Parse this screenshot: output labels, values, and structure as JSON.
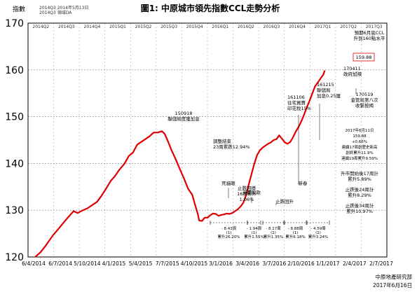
{
  "chart_data": {
    "type": "line",
    "title": "圖1: 中原城市領先指數CCL走勢分析",
    "ylabel": "指數",
    "ylim": [
      120,
      170
    ],
    "yticks": [
      120,
      130,
      140,
      150,
      160,
      170
    ],
    "grid": true,
    "corner_labels": [
      "2014Q3 2014年5月13日",
      "2014Q3 領域DA"
    ],
    "x_tick_labels": [
      "6/4/2014",
      "6/7/2014",
      "5/10/2014",
      "4/1/2015",
      "5/4/2015",
      "7/7/2015",
      "4/10/2015",
      "3/1/2016",
      "3/4/2016",
      "3/7/2016",
      "2/10/2016",
      "1/1/2017",
      "2/4/2017",
      "2/7/2017"
    ],
    "quarter_labels": [
      "2014Q2",
      "2014Q3",
      "2014Q4",
      "2015Q1",
      "2015Q2",
      "2015Q3",
      "2015Q4",
      "2016Q1",
      "2016Q2",
      "2016Q3",
      "2016Q4",
      "2017Q1",
      "2017Q2",
      "2017Q3"
    ],
    "series": [
      {
        "color": "#e00000",
        "points": [
          [
            0.0,
            117
          ],
          [
            0.4,
            118.5
          ],
          [
            0.9,
            121
          ],
          [
            1.3,
            122.5
          ],
          [
            1.8,
            124.6
          ],
          [
            2.2,
            126
          ],
          [
            2.7,
            127.8
          ],
          [
            3.0,
            128.8
          ],
          [
            3.3,
            129.8
          ],
          [
            3.6,
            129.4
          ],
          [
            3.9,
            129.9
          ],
          [
            4.3,
            130.4
          ],
          [
            4.7,
            131.2
          ],
          [
            5.0,
            131.8
          ],
          [
            5.3,
            133
          ],
          [
            5.7,
            134.8
          ],
          [
            6.0,
            136.3
          ],
          [
            6.3,
            137.3
          ],
          [
            6.6,
            138.6
          ],
          [
            7.0,
            140
          ],
          [
            7.3,
            141.6
          ],
          [
            7.6,
            142.3
          ],
          [
            7.9,
            144
          ],
          [
            8.2,
            144.6
          ],
          [
            8.5,
            145.2
          ],
          [
            8.8,
            145.8
          ],
          [
            9.1,
            146.6
          ],
          [
            9.4,
            146.6
          ],
          [
            9.7,
            146.9
          ],
          [
            9.9,
            146.3
          ],
          [
            10.1,
            145
          ],
          [
            10.4,
            142.8
          ],
          [
            10.7,
            140.9
          ],
          [
            11.0,
            138.8
          ],
          [
            11.3,
            136.8
          ],
          [
            11.6,
            134.6
          ],
          [
            11.9,
            133.3
          ],
          [
            12.1,
            131.2
          ],
          [
            12.3,
            129.2
          ],
          [
            12.4,
            127.8
          ],
          [
            12.6,
            127.7
          ],
          [
            12.8,
            128.4
          ],
          [
            13.0,
            128.4
          ],
          [
            13.2,
            128.9
          ],
          [
            13.4,
            129.3
          ],
          [
            13.6,
            129.2
          ],
          [
            13.8,
            128.8
          ],
          [
            14.0,
            129
          ],
          [
            14.2,
            129.1
          ],
          [
            14.4,
            129.3
          ],
          [
            14.6,
            129.2
          ],
          [
            14.8,
            129.4
          ],
          [
            15.0,
            129.8
          ],
          [
            15.2,
            130.2
          ],
          [
            15.4,
            130.8
          ],
          [
            15.6,
            131.6
          ],
          [
            15.8,
            133.2
          ],
          [
            16.0,
            135.6
          ],
          [
            16.2,
            137.8
          ],
          [
            16.4,
            140
          ],
          [
            16.6,
            141.8
          ],
          [
            16.8,
            142.8
          ],
          [
            17.0,
            143.4
          ],
          [
            17.2,
            143.8
          ],
          [
            17.4,
            144.2
          ],
          [
            17.6,
            144.5
          ],
          [
            17.8,
            145
          ],
          [
            18.0,
            145.2
          ],
          [
            18.2,
            146
          ],
          [
            18.4,
            145.3
          ],
          [
            18.6,
            144.5
          ],
          [
            18.8,
            144.2
          ],
          [
            19.0,
            144.6
          ],
          [
            19.2,
            145.6
          ],
          [
            19.4,
            146.8
          ],
          [
            19.6,
            147.8
          ],
          [
            19.8,
            149
          ],
          [
            20.0,
            150.4
          ],
          [
            20.2,
            152
          ],
          [
            20.4,
            153.4
          ],
          [
            20.6,
            155
          ],
          [
            20.8,
            156.5
          ],
          [
            21.0,
            157.3
          ],
          [
            21.2,
            158.2
          ],
          [
            21.4,
            159.0
          ],
          [
            21.5,
            159.88
          ]
        ]
      }
    ],
    "annotations": [
      {
        "lines": [
          "150918",
          "聯儲局度獲加息"
        ]
      },
      {
        "lines": [
          "調整結束",
          "23周累跌12.94%"
        ]
      },
      {
        "lines": [
          "英國脫歐"
        ]
      },
      {
        "lines": [
          "死貓眼"
        ]
      },
      {
        "lines": [
          "止跌回穩",
          "16周累升",
          "1.06%"
        ]
      },
      {
        "lines": [
          "止跌回升"
        ]
      },
      {
        "lines": [
          "161106",
          "住宅買賣",
          "印花稅15%"
        ]
      },
      {
        "lines": [
          "161215",
          "聯儲局",
          "加息0.25厘"
        ]
      },
      {
        "lines": [
          "新春"
        ]
      },
      {
        "lines": [
          "170411",
          "政府加辣"
        ]
      },
      {
        "lines": [
          "預期6月底CCL",
          "升到160點水平"
        ]
      },
      {
        "lines": [
          "159.88"
        ]
      },
      {
        "lines": [
          "170519",
          "金管局第八次",
          "收緊按揭"
        ]
      },
      {
        "lines": [
          "2017年6月11日",
          "159.88",
          "+0.66%",
          "連續17周創歷史新高",
          "創終累升11.9%",
          "連續19周累升9.59%"
        ]
      },
      {
        "lines": [
          "升市開始後17周計",
          "累升5.89%"
        ]
      },
      {
        "lines": [
          "止跌後24周計",
          "累升8.29%"
        ]
      },
      {
        "lines": [
          "止跌後34周計",
          "累升10.97%"
        ]
      }
    ],
    "range_labels": [
      {
        "lines": [
          "- 8.43周",
          "(1)",
          "累升26.20%"
        ]
      },
      {
        "lines": [
          "- 1.94周",
          "(1)",
          "累升1.55%"
        ]
      },
      {
        "lines": [
          "- 8.17周",
          "(1)",
          "累升1.35%"
        ]
      },
      {
        "lines": [
          "- 8.88周",
          "(1)",
          "累升6.18%"
        ]
      },
      {
        "lines": [
          "- 4.59周",
          "(1)",
          "累升3.24%"
        ]
      }
    ],
    "footer": {
      "source": "中原地產研究部",
      "date": "2017年6月16日"
    }
  }
}
